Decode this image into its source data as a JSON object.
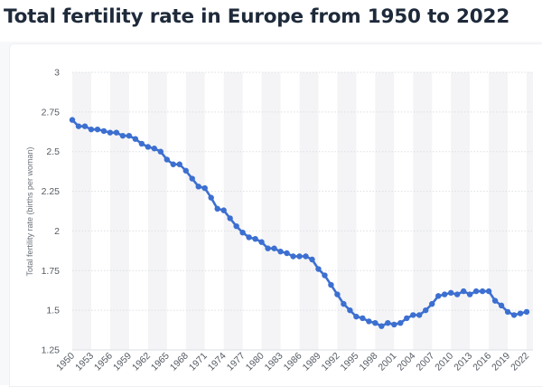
{
  "title": "Total fertility rate in Europe from 1950 to 2022",
  "chart_data": {
    "type": "line",
    "title": "Total fertility rate in Europe from 1950 to 2022",
    "xlabel": "",
    "ylabel": "Total fertility rate (births per woman)",
    "ylim": [
      1.25,
      3
    ],
    "yticks": [
      "1.25",
      "1.5",
      "1.75",
      "2",
      "2.25",
      "2.5",
      "2.75",
      "3"
    ],
    "xticks": [
      "1950",
      "1953",
      "1956",
      "1959",
      "1962",
      "1965",
      "1968",
      "1971",
      "1974",
      "1977",
      "1980",
      "1983",
      "1986",
      "1989",
      "1992",
      "1995",
      "1998",
      "2001",
      "2004",
      "2007",
      "2010",
      "2013",
      "2016",
      "2019",
      "2022"
    ],
    "grid": true,
    "color": "#3c6fd0",
    "x": [
      1950,
      1951,
      1952,
      1953,
      1954,
      1955,
      1956,
      1957,
      1958,
      1959,
      1960,
      1961,
      1962,
      1963,
      1964,
      1965,
      1966,
      1967,
      1968,
      1969,
      1970,
      1971,
      1972,
      1973,
      1974,
      1975,
      1976,
      1977,
      1978,
      1979,
      1980,
      1981,
      1982,
      1983,
      1984,
      1985,
      1986,
      1987,
      1988,
      1989,
      1990,
      1991,
      1992,
      1993,
      1994,
      1995,
      1996,
      1997,
      1998,
      1999,
      2000,
      2001,
      2002,
      2003,
      2004,
      2005,
      2006,
      2007,
      2008,
      2009,
      2010,
      2011,
      2012,
      2013,
      2014,
      2015,
      2016,
      2017,
      2018,
      2019,
      2020,
      2021,
      2022
    ],
    "y": [
      2.7,
      2.66,
      2.66,
      2.64,
      2.64,
      2.63,
      2.62,
      2.62,
      2.6,
      2.6,
      2.58,
      2.55,
      2.53,
      2.52,
      2.5,
      2.45,
      2.42,
      2.42,
      2.38,
      2.33,
      2.28,
      2.27,
      2.21,
      2.14,
      2.13,
      2.08,
      2.03,
      1.99,
      1.96,
      1.95,
      1.93,
      1.89,
      1.89,
      1.87,
      1.86,
      1.84,
      1.84,
      1.84,
      1.82,
      1.76,
      1.72,
      1.66,
      1.6,
      1.54,
      1.5,
      1.46,
      1.45,
      1.43,
      1.42,
      1.4,
      1.42,
      1.41,
      1.42,
      1.45,
      1.47,
      1.47,
      1.5,
      1.54,
      1.59,
      1.6,
      1.61,
      1.6,
      1.62,
      1.6,
      1.62,
      1.62,
      1.62,
      1.56,
      1.53,
      1.49,
      1.47,
      1.48,
      1.49
    ]
  }
}
